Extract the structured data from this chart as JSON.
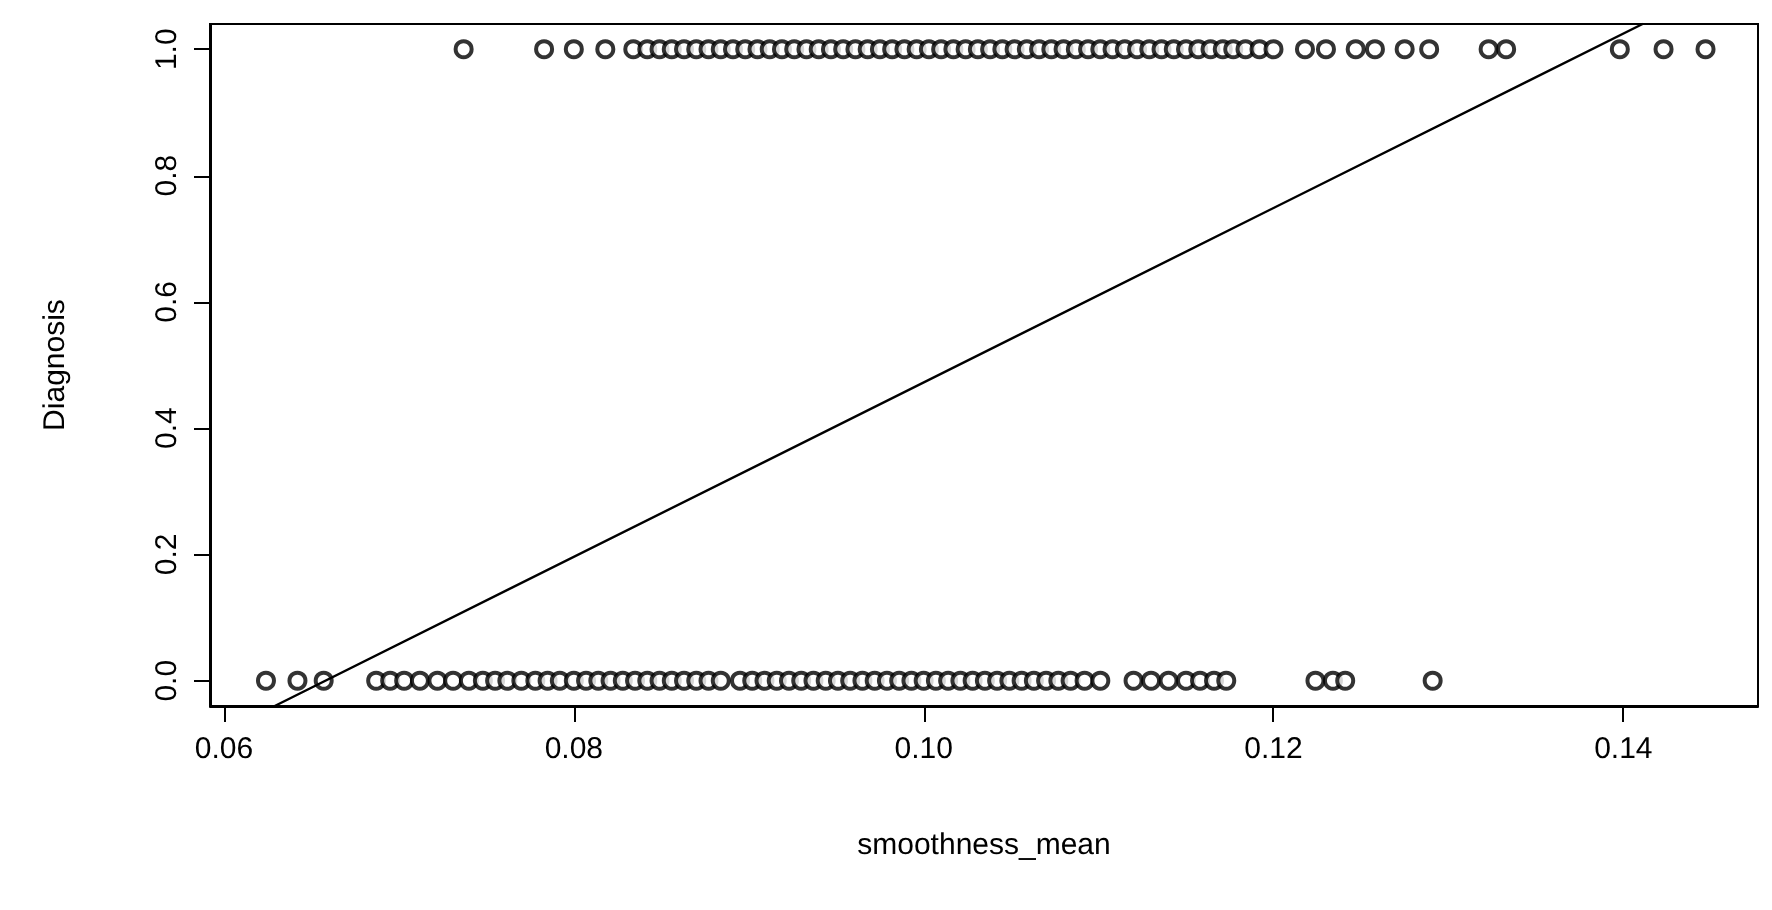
{
  "chart_data": {
    "type": "scatter",
    "xlabel": "smoothness_mean",
    "ylabel": "Diagnosis",
    "marker": "circle",
    "grid": false,
    "xlim": [
      0.0592,
      0.1477
    ],
    "ylim": [
      -0.04,
      1.04
    ],
    "xticks": [
      {
        "value": 0.06,
        "label": "0.06"
      },
      {
        "value": 0.08,
        "label": "0.08"
      },
      {
        "value": 0.1,
        "label": "0.10"
      },
      {
        "value": 0.12,
        "label": "0.12"
      },
      {
        "value": 0.14,
        "label": "0.14"
      }
    ],
    "yticks": [
      {
        "value": 0,
        "label": "0.0"
      },
      {
        "value": 0.2,
        "label": "0.2"
      },
      {
        "value": 0.4,
        "label": "0.4"
      },
      {
        "value": 0.6,
        "label": "0.6"
      },
      {
        "value": 0.8,
        "label": "0.8"
      },
      {
        "value": 1,
        "label": "1.0"
      }
    ],
    "series": [
      {
        "color": "#000000",
        "x": [
          0.0624,
          0.0642,
          0.0657,
          0.0687,
          0.0695,
          0.0703,
          0.0712,
          0.0722,
          0.0731,
          0.074,
          0.0748,
          0.0755,
          0.0762,
          0.077,
          0.0778,
          0.0785,
          0.0792,
          0.08,
          0.0807,
          0.0814,
          0.0821,
          0.0828,
          0.0835,
          0.0842,
          0.0849,
          0.0856,
          0.0863,
          0.087,
          0.0877,
          0.0884,
          0.0895,
          0.0902,
          0.0909,
          0.0916,
          0.0923,
          0.093,
          0.0937,
          0.0944,
          0.0951,
          0.0958,
          0.0965,
          0.0972,
          0.0979,
          0.0986,
          0.0993,
          0.1,
          0.1007,
          0.1014,
          0.1021,
          0.1028,
          0.1035,
          0.1042,
          0.1049,
          0.1056,
          0.1063,
          0.107,
          0.1077,
          0.1084,
          0.1092,
          0.1101,
          0.112,
          0.113,
          0.114,
          0.115,
          0.1158,
          0.1166,
          0.1173,
          0.1224,
          0.1234,
          0.1241,
          0.1291,
          0.0737,
          0.0783,
          0.08,
          0.0818,
          0.0834,
          0.0842,
          0.0849,
          0.0856,
          0.0863,
          0.087,
          0.0877,
          0.0884,
          0.0891,
          0.0898,
          0.0905,
          0.0912,
          0.0919,
          0.0926,
          0.0933,
          0.094,
          0.0947,
          0.0954,
          0.0961,
          0.0968,
          0.0975,
          0.0982,
          0.0989,
          0.0996,
          0.1003,
          0.101,
          0.1017,
          0.1024,
          0.1031,
          0.1038,
          0.1045,
          0.1052,
          0.1059,
          0.1066,
          0.1073,
          0.108,
          0.1087,
          0.1094,
          0.1101,
          0.1108,
          0.1115,
          0.1122,
          0.1129,
          0.1136,
          0.1143,
          0.115,
          0.1157,
          0.1164,
          0.1171,
          0.1177,
          0.1184,
          0.1192,
          0.12,
          0.1218,
          0.123,
          0.1247,
          0.1258,
          0.1275,
          0.1289,
          0.1323,
          0.1333,
          0.1398,
          0.1423,
          0.1447
        ],
        "values": [
          0,
          0,
          0,
          0,
          0,
          0,
          0,
          0,
          0,
          0,
          0,
          0,
          0,
          0,
          0,
          0,
          0,
          0,
          0,
          0,
          0,
          0,
          0,
          0,
          0,
          0,
          0,
          0,
          0,
          0,
          0,
          0,
          0,
          0,
          0,
          0,
          0,
          0,
          0,
          0,
          0,
          0,
          0,
          0,
          0,
          0,
          0,
          0,
          0,
          0,
          0,
          0,
          0,
          0,
          0,
          0,
          0,
          0,
          0,
          0,
          0,
          0,
          0,
          0,
          0,
          0,
          0,
          0,
          0,
          0,
          0,
          1,
          1,
          1,
          1,
          1,
          1,
          1,
          1,
          1,
          1,
          1,
          1,
          1,
          1,
          1,
          1,
          1,
          1,
          1,
          1,
          1,
          1,
          1,
          1,
          1,
          1,
          1,
          1,
          1,
          1,
          1,
          1,
          1,
          1,
          1,
          1,
          1,
          1,
          1,
          1,
          1,
          1,
          1,
          1,
          1,
          1,
          1,
          1,
          1,
          1,
          1,
          1,
          1,
          1,
          1,
          1,
          1,
          1,
          1,
          1,
          1,
          1,
          1,
          1,
          1,
          1,
          1,
          1
        ]
      },
      {
        "type": "line",
        "color": "#000000",
        "marker": "none",
        "x": [
          0.0629,
          0.1411
        ],
        "values": [
          -0.04,
          1.04
        ]
      }
    ]
  }
}
